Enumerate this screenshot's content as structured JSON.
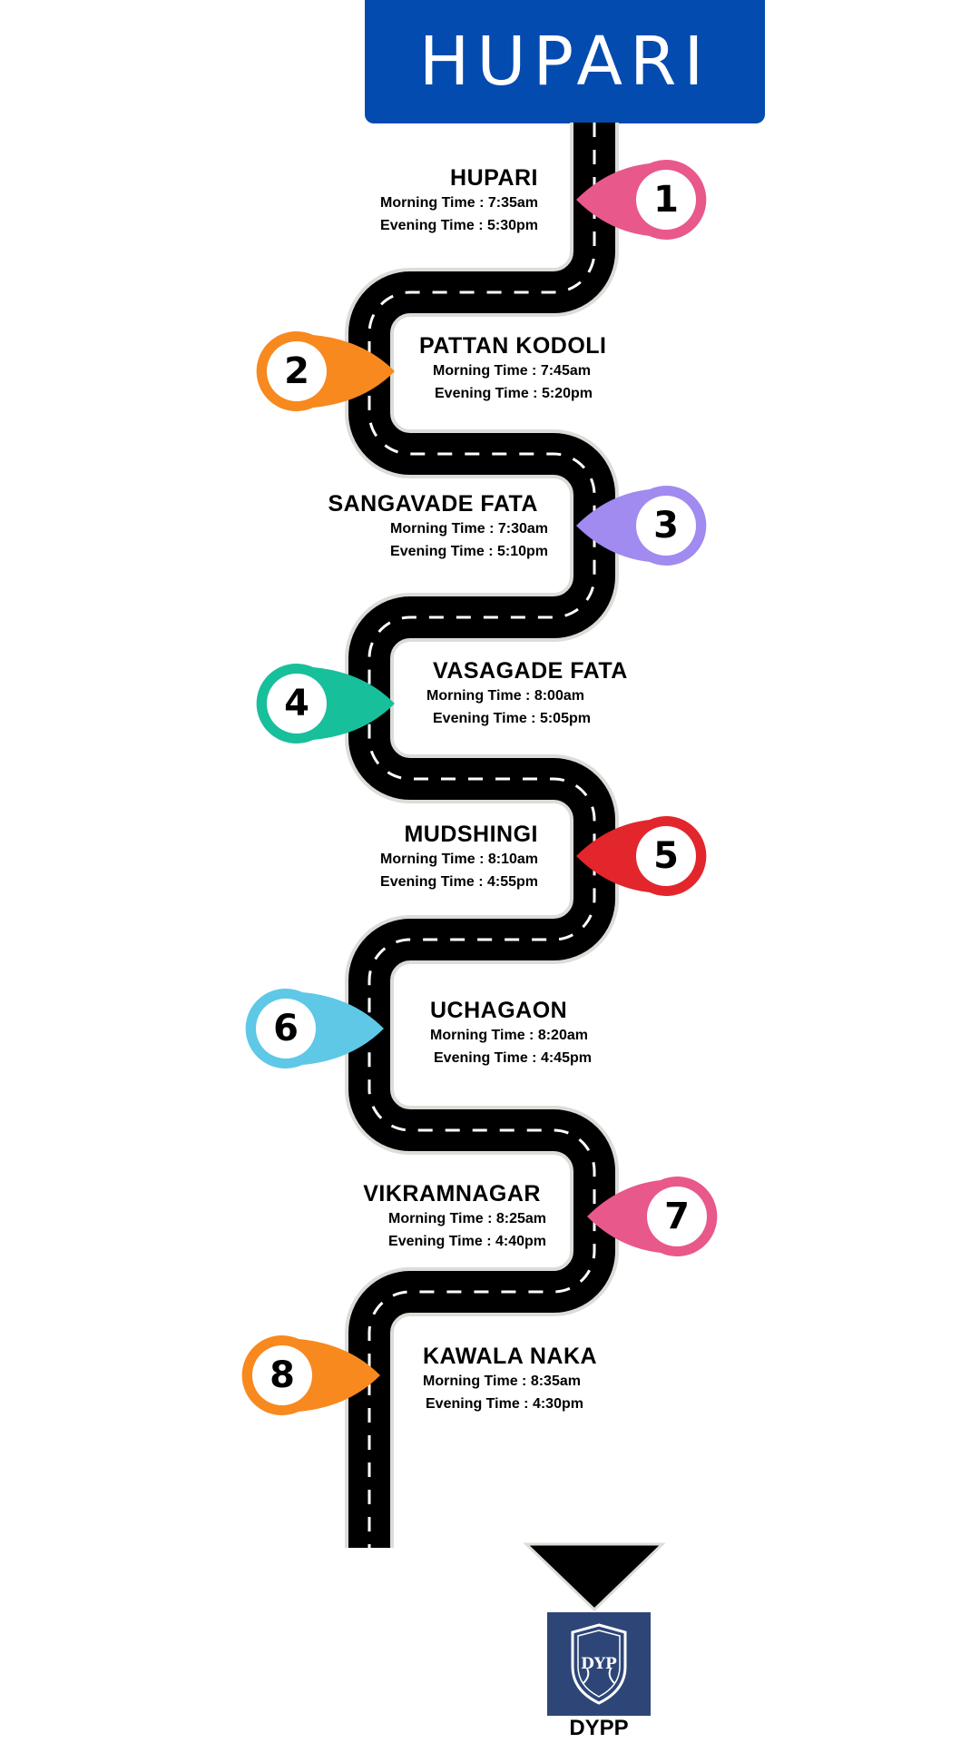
{
  "header": {
    "title": "HUPARI"
  },
  "stops": [
    {
      "number": "1",
      "name": "HUPARI",
      "morning": "Morning Time : 7:35am",
      "evening": "Evening Time : 5:30pm",
      "color": "#e8588b"
    },
    {
      "number": "2",
      "name": "PATTAN KODOLI",
      "morning": "Morning Time : 7:45am",
      "evening": "Evening Time : 5:20pm",
      "color": "#f7891e"
    },
    {
      "number": "3",
      "name": "SANGAVADE FATA",
      "morning": "Morning Time : 7:30am",
      "evening": "Evening Time : 5:10pm",
      "color": "#a18af0"
    },
    {
      "number": "4",
      "name": "VASAGADE FATA",
      "morning": "Morning Time : 8:00am",
      "evening": "Evening Time : 5:05pm",
      "color": "#18bf9b"
    },
    {
      "number": "5",
      "name": "MUDSHINGI",
      "morning": "Morning Time : 8:10am",
      "evening": "Evening Time : 4:55pm",
      "color": "#e2262c"
    },
    {
      "number": "6",
      "name": "UCHAGAON",
      "morning": "Morning Time : 8:20am",
      "evening": "Evening Time : 4:45pm",
      "color": "#5ec8e6"
    },
    {
      "number": "7",
      "name": "VIKRAMNAGAR",
      "morning": "Morning Time : 8:25am",
      "evening": "Evening Time : 4:40pm",
      "color": "#e8588b"
    },
    {
      "number": "8",
      "name": "KAWALA NAKA",
      "morning": "Morning Time : 8:35am",
      "evening": "Evening Time : 4:30pm",
      "color": "#f7891e"
    }
  ],
  "logo": {
    "monogram": "DYP",
    "caption": "DYPP"
  }
}
